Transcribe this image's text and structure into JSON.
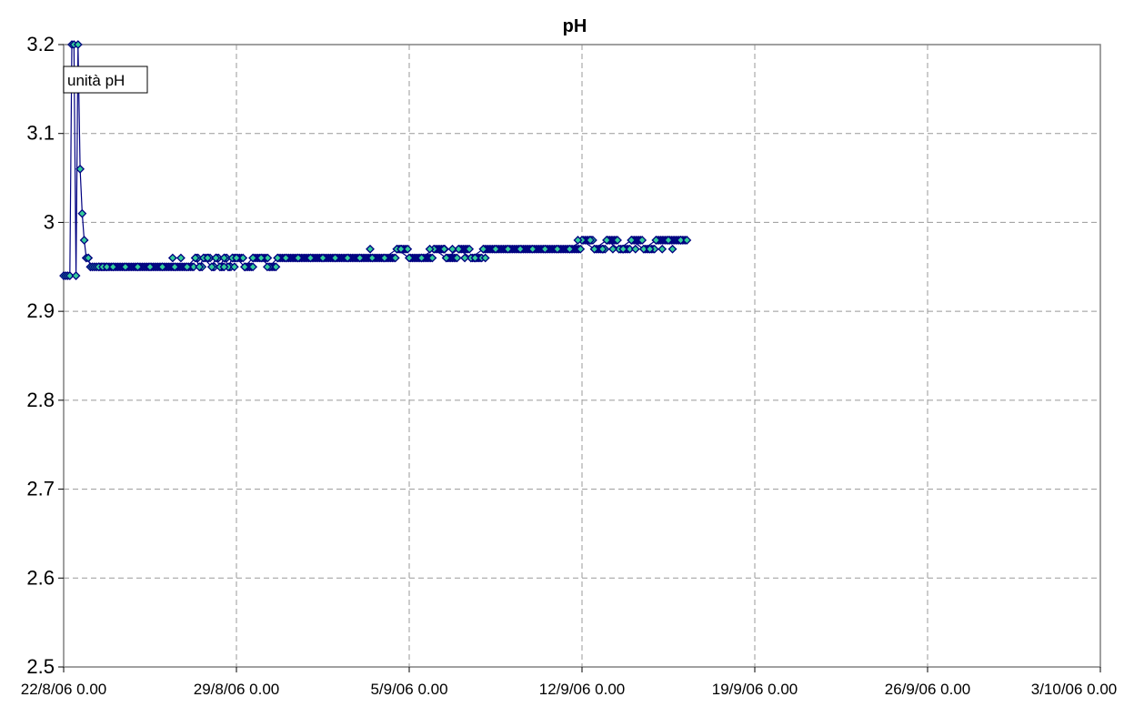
{
  "chart_data": {
    "type": "scatter",
    "title": "pH",
    "legend": "unità pH",
    "legend_position": "top-left",
    "grid": true,
    "xlabel": "",
    "ylabel": "",
    "ylim": [
      2.5,
      3.2
    ],
    "xlim": [
      "2006-08-22",
      "2006-10-03"
    ],
    "y_ticks": [
      "2.5",
      "2.6",
      "2.7",
      "2.8",
      "2.9",
      "3",
      "3.1",
      "3.2"
    ],
    "x_ticks": [
      "22/8/06 0.00",
      "29/8/06 0.00",
      "5/9/06 0.00",
      "12/9/06 0.00",
      "19/9/06 0.00",
      "26/9/06 0.00",
      "3/10/06 0.00"
    ],
    "series": [
      {
        "name": "unità pH",
        "color": "#000080",
        "marker_fill": "#33CC99",
        "x": [
          "2006-08-22T00:00",
          "2006-08-22T02:00",
          "2006-08-22T04:00",
          "2006-08-22T06:00",
          "2006-08-22T08:00",
          "2006-08-22T10:00",
          "2006-08-22T12:00",
          "2006-08-22T14:00",
          "2006-08-22T16:00",
          "2006-08-22T18:00",
          "2006-08-22T20:00",
          "2006-08-22T22:00",
          "2006-08-23T00:00",
          "2006-08-23T02:00",
          "2006-08-23T04:00",
          "2006-08-23T06:00",
          "2006-08-23T08:00",
          "2006-08-23T10:00",
          "2006-08-23T14:00",
          "2006-08-23T18:00",
          "2006-08-24T00:00",
          "2006-08-24T12:00",
          "2006-08-25T00:00",
          "2006-08-25T12:00",
          "2006-08-26T00:00",
          "2006-08-26T12:00",
          "2006-08-27T00:00",
          "2006-08-27T08:00",
          "2006-08-27T12:00",
          "2006-08-27T16:00",
          "2006-08-28T00:00",
          "2006-08-28T04:00",
          "2006-08-28T08:00",
          "2006-08-28T12:00",
          "2006-08-28T16:00",
          "2006-08-28T20:00",
          "2006-08-29T00:00",
          "2006-08-29T08:00",
          "2006-08-29T16:00",
          "2006-08-30T00:00",
          "2006-08-30T08:00",
          "2006-08-30T16:00",
          "2006-08-31T00:00",
          "2006-08-31T12:00",
          "2006-09-01T00:00",
          "2006-09-01T12:00",
          "2006-09-02T00:00",
          "2006-09-02T12:00",
          "2006-09-03T00:00",
          "2006-09-03T12:00",
          "2006-09-04T00:00",
          "2006-09-04T12:00",
          "2006-09-05T00:00",
          "2006-09-05T12:00",
          "2006-09-06T00:00",
          "2006-09-06T12:00",
          "2006-09-07T00:00",
          "2006-09-07T12:00",
          "2006-09-08T00:00",
          "2006-09-08T12:00",
          "2006-09-09T00:00",
          "2006-09-09T12:00",
          "2006-09-10T00:00",
          "2006-09-10T12:00",
          "2006-09-11T00:00",
          "2006-09-11T12:00",
          "2006-09-12T00:00",
          "2006-09-12T12:00",
          "2006-09-13T00:00",
          "2006-09-13T12:00",
          "2006-09-14T00:00",
          "2006-09-14T12:00",
          "2006-09-15T00:00",
          "2006-09-15T12:00",
          "2006-09-16T00:00",
          "2006-09-16T06:00"
        ],
        "y": [
          2.94,
          2.94,
          2.94,
          2.94,
          3.2,
          3.2,
          2.94,
          3.2,
          3.06,
          3.01,
          2.98,
          2.96,
          2.96,
          2.95,
          2.95,
          2.95,
          2.95,
          2.95,
          2.95,
          2.95,
          2.95,
          2.95,
          2.95,
          2.95,
          2.95,
          2.95,
          2.95,
          2.96,
          2.95,
          2.96,
          2.95,
          2.96,
          2.95,
          2.96,
          2.95,
          2.96,
          2.96,
          2.95,
          2.96,
          2.96,
          2.95,
          2.96,
          2.96,
          2.96,
          2.96,
          2.96,
          2.96,
          2.96,
          2.96,
          2.96,
          2.96,
          2.97,
          2.96,
          2.96,
          2.97,
          2.96,
          2.97,
          2.96,
          2.97,
          2.97,
          2.97,
          2.97,
          2.97,
          2.97,
          2.97,
          2.97,
          2.98,
          2.97,
          2.98,
          2.97,
          2.98,
          2.97,
          2.98,
          2.98,
          2.98,
          2.98
        ]
      }
    ],
    "extra_points": {
      "x": [
        "2006-08-26T10:00",
        "2006-08-26T18:00",
        "2006-08-27T20:00",
        "2006-08-28T12:00",
        "2006-08-28T22:00",
        "2006-08-29T08:00",
        "2006-08-29T16:00",
        "2006-08-30T06:00",
        "2006-09-03T10:00",
        "2006-09-04T16:00",
        "2006-09-05T20:00",
        "2006-09-06T10:00",
        "2006-09-06T18:00",
        "2006-09-07T06:00",
        "2006-09-07T16:00",
        "2006-09-08T02:00",
        "2006-09-11T20:00",
        "2006-09-12T08:00",
        "2006-09-12T20:00",
        "2006-09-13T06:00",
        "2006-09-13T16:00",
        "2006-09-14T04:00",
        "2006-09-14T18:00",
        "2006-09-15T06:00",
        "2006-09-15T16:00"
      ],
      "y": [
        2.96,
        2.96,
        2.96,
        2.95,
        2.95,
        2.95,
        2.95,
        2.95,
        2.97,
        2.97,
        2.97,
        2.97,
        2.97,
        2.96,
        2.96,
        2.96,
        2.98,
        2.98,
        2.97,
        2.97,
        2.97,
        2.97,
        2.97,
        2.97,
        2.97
      ]
    }
  }
}
